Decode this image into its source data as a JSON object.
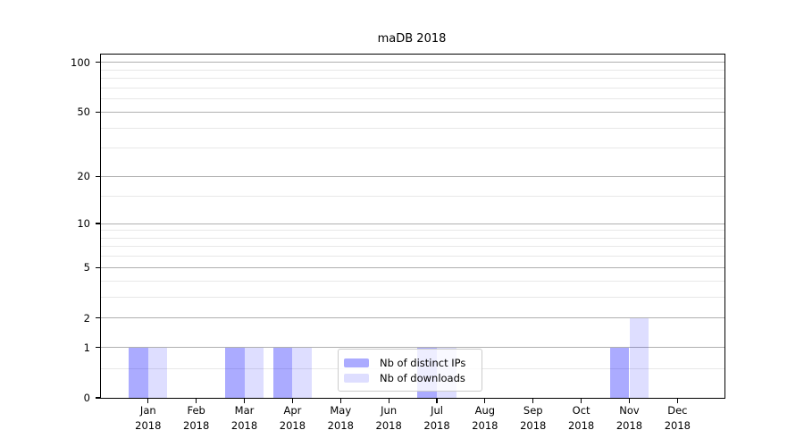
{
  "title": "maDB 2018",
  "chart_data": {
    "type": "bar",
    "title": "maDB 2018",
    "categories": [
      "Jan",
      "Feb",
      "Mar",
      "Apr",
      "May",
      "Jun",
      "Jul",
      "Aug",
      "Sep",
      "Oct",
      "Nov",
      "Dec"
    ],
    "category_year": "2018",
    "series": [
      {
        "name": "Nb of distinct IPs",
        "color_hex": "#ababff",
        "fill": "rgba(0,0,255,0.33)",
        "values": [
          1,
          0,
          1,
          1,
          0,
          0,
          1,
          0,
          0,
          0,
          1,
          0
        ]
      },
      {
        "name": "Nb of downloads",
        "color_hex": "#dedeff",
        "fill": "rgba(0,0,255,0.13)",
        "values": [
          1,
          0,
          1,
          1,
          0,
          0,
          1,
          0,
          0,
          0,
          2,
          0
        ]
      }
    ],
    "xlabel": "",
    "ylabel": "",
    "yticks": [
      0,
      1,
      2,
      5,
      10,
      20,
      50,
      100
    ],
    "minor_yticks": [
      0.5,
      3,
      4,
      6,
      7,
      8,
      9,
      15,
      30,
      40,
      60,
      70,
      80,
      90
    ],
    "scale": "log1p",
    "ylim": [
      0,
      111.4
    ],
    "grid": "horizontal",
    "legend_position": "lower center",
    "colors": {
      "major_grid": "#b0b0b0",
      "minor_grid": "#e8e8e8",
      "axis": "#000000",
      "legend_border": "#cccccc"
    }
  }
}
